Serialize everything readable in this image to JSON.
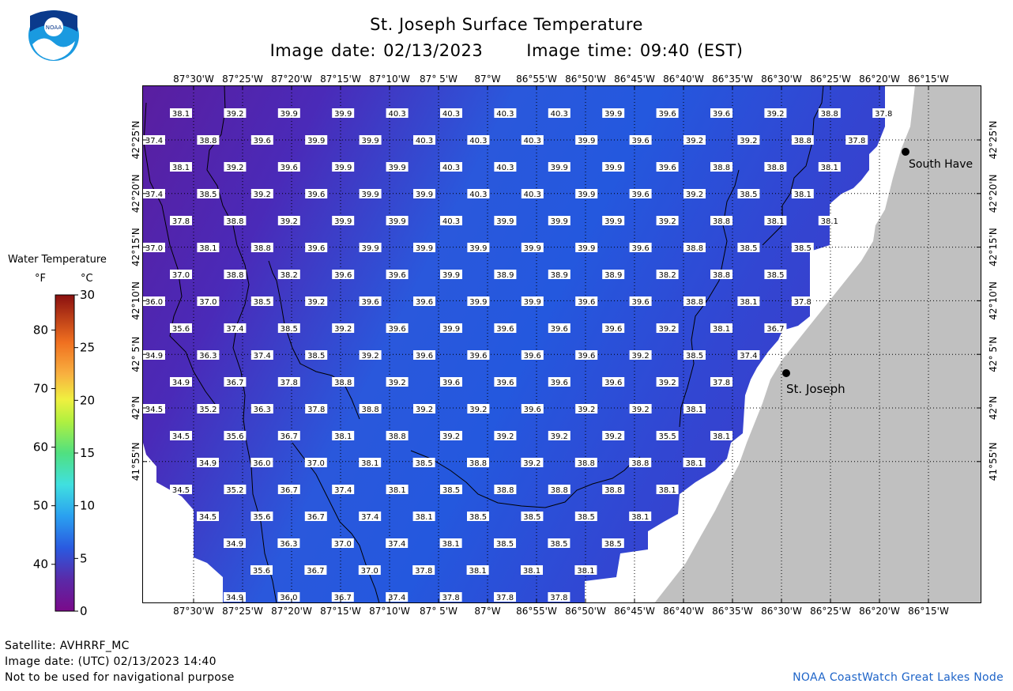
{
  "title": "St. Joseph Surface Temperature",
  "subtitle_date": "Image date: 02/13/2023",
  "subtitle_time": "Image time: 09:40 (EST)",
  "logo_text": "NOAA",
  "legend": {
    "title": "Water Temperature",
    "unit_f": "°F",
    "unit_c": "°C",
    "f_ticks": [
      "80",
      "70",
      "60",
      "50",
      "40"
    ],
    "c_ticks": [
      "30",
      "25",
      "20",
      "15",
      "10",
      "5",
      "0"
    ]
  },
  "axes": {
    "lon_labels": [
      "87°30'W",
      "87°25'W",
      "87°20'W",
      "87°15'W",
      "87°10'W",
      "87° 5'W",
      "87°W",
      "86°55'W",
      "86°50'W",
      "86°45'W",
      "86°40'W",
      "86°35'W",
      "86°30'W",
      "86°25'W",
      "86°20'W",
      "86°15'W"
    ],
    "lat_labels": [
      "42°25'N",
      "42°20'N",
      "42°15'N",
      "42°10'N",
      "42° 5'N",
      "42°N",
      "41°55'N"
    ]
  },
  "places": [
    {
      "name": "South Have"
    },
    {
      "name": "St. Joseph"
    }
  ],
  "colors": {
    "land": "#c0c0c0",
    "water_cold": "#5a1ea0",
    "water_warm": "#2060e0"
  },
  "temperature_rows": [
    [
      "38.1",
      "39.2",
      "39.9",
      "39.9",
      "40.3",
      "40.3",
      "40.3",
      "40.3",
      "39.9",
      "39.6",
      "39.6",
      "39.2",
      "38.8",
      "37.8"
    ],
    [
      "37.4",
      "38.8",
      "39.6",
      "39.9",
      "39.9",
      "40.3",
      "40.3",
      "40.3",
      "39.9",
      "39.6",
      "39.2",
      "39.2",
      "38.8",
      "37.8"
    ],
    [
      "38.1",
      "39.2",
      "39.6",
      "39.9",
      "39.9",
      "40.3",
      "40.3",
      "39.9",
      "39.9",
      "39.6",
      "38.8",
      "38.8",
      "38.1"
    ],
    [
      "37.4",
      "38.5",
      "39.2",
      "39.6",
      "39.9",
      "39.9",
      "40.3",
      "40.3",
      "39.9",
      "39.6",
      "39.2",
      "38.5",
      "38.1"
    ],
    [
      "37.8",
      "38.8",
      "39.2",
      "39.9",
      "39.9",
      "40.3",
      "39.9",
      "39.9",
      "39.9",
      "39.2",
      "38.8",
      "38.1",
      "38.1"
    ],
    [
      "37.0",
      "38.1",
      "38.8",
      "39.6",
      "39.9",
      "39.9",
      "39.9",
      "39.9",
      "39.9",
      "39.6",
      "38.8",
      "38.5",
      "38.5"
    ],
    [
      "37.0",
      "38.8",
      "38.2",
      "39.6",
      "39.6",
      "39.9",
      "38.9",
      "38.9",
      "38.9",
      "38.2",
      "38.8",
      "38.5"
    ],
    [
      "36.0",
      "37.0",
      "38.5",
      "39.2",
      "39.6",
      "39.6",
      "39.9",
      "39.9",
      "39.6",
      "39.6",
      "38.8",
      "38.1",
      "37.8"
    ],
    [
      "35.6",
      "37.4",
      "38.5",
      "39.2",
      "39.6",
      "39.9",
      "39.6",
      "39.6",
      "39.6",
      "39.2",
      "38.1",
      "36.7"
    ],
    [
      "34.9",
      "36.3",
      "37.4",
      "38.5",
      "39.2",
      "39.6",
      "39.6",
      "39.6",
      "39.6",
      "39.2",
      "38.5",
      "37.4"
    ],
    [
      "34.9",
      "36.7",
      "37.8",
      "38.8",
      "39.2",
      "39.6",
      "39.6",
      "39.6",
      "39.6",
      "39.2",
      "37.8"
    ],
    [
      "34.5",
      "35.2",
      "36.3",
      "37.8",
      "38.8",
      "39.2",
      "39.2",
      "39.6",
      "39.2",
      "39.2",
      "38.1"
    ],
    [
      "34.5",
      "35.6",
      "36.7",
      "38.1",
      "38.8",
      "39.2",
      "39.2",
      "39.2",
      "39.2",
      "35.5",
      "38.1"
    ],
    [
      "34.9",
      "36.0",
      "37.0",
      "38.1",
      "38.5",
      "38.8",
      "39.2",
      "38.8",
      "38.8",
      "38.1"
    ],
    [
      "34.5",
      "35.2",
      "36.7",
      "37.4",
      "38.1",
      "38.5",
      "38.8",
      "38.8",
      "38.8",
      "38.1"
    ],
    [
      "34.5",
      "35.6",
      "36.7",
      "37.4",
      "38.1",
      "38.5",
      "38.5",
      "38.5",
      "38.1"
    ],
    [
      "34.9",
      "36.3",
      "37.0",
      "37.4",
      "38.1",
      "38.5",
      "38.5",
      "38.5"
    ],
    [
      "35.6",
      "36.7",
      "37.0",
      "37.8",
      "38.1",
      "38.1",
      "38.1"
    ],
    [
      "34.9",
      "36.0",
      "36.7",
      "37.4",
      "37.8",
      "37.8",
      "37.8"
    ]
  ],
  "footer": {
    "satellite": "Satellite: AVHRRF_MC",
    "utc_date": "Image date: (UTC) 02/13/2023  14:40",
    "disclaimer": "Not to be used for navigational purpose",
    "credit": "NOAA CoastWatch Great Lakes Node"
  }
}
